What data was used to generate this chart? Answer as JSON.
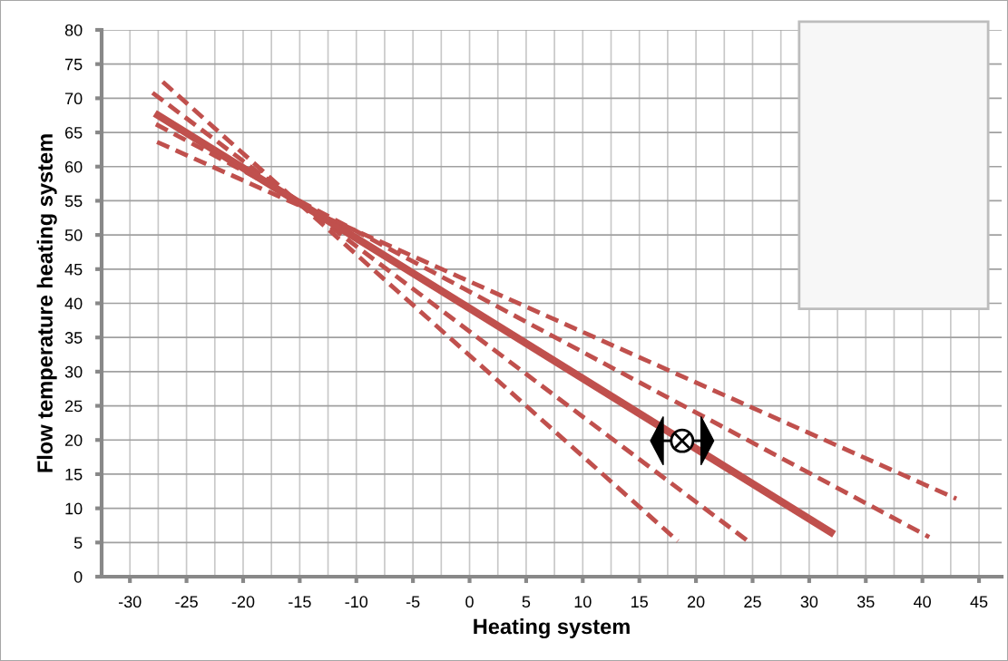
{
  "chart_data": {
    "type": "line",
    "xlabel": "Heating system",
    "ylabel": "Flow temperature heating system",
    "xlim": [
      -32.5,
      47.0
    ],
    "ylim": [
      0,
      80
    ],
    "xticks": [
      -30,
      -25,
      -20,
      -15,
      -10,
      -5,
      0,
      5,
      10,
      15,
      20,
      25,
      30,
      35,
      40,
      45
    ],
    "yticks": [
      0,
      5,
      10,
      15,
      20,
      25,
      30,
      35,
      40,
      45,
      50,
      55,
      60,
      65,
      70,
      75,
      80
    ],
    "grid": true,
    "legend": false,
    "marker": "none",
    "series": [
      {
        "color": "#c0504d",
        "line_style": "dashed",
        "x": [
          -27.1,
          18.4
        ],
        "values": [
          72.4,
          5.2
        ]
      },
      {
        "color": "#c0504d",
        "line_style": "dashed",
        "x": [
          -28.0,
          24.6
        ],
        "values": [
          70.8,
          5.2
        ]
      },
      {
        "color": "#c0504d",
        "line_style": "solid",
        "x": [
          -27.8,
          32.2
        ],
        "values": [
          67.8,
          6.2
        ]
      },
      {
        "color": "#c0504d",
        "line_style": "dashed",
        "x": [
          -27.7,
          40.6
        ],
        "values": [
          66.2,
          5.8
        ]
      },
      {
        "color": "#c0504d",
        "line_style": "dashed",
        "x": [
          -27.6,
          43.0
        ],
        "values": [
          63.6,
          11.4
        ]
      }
    ]
  }
}
